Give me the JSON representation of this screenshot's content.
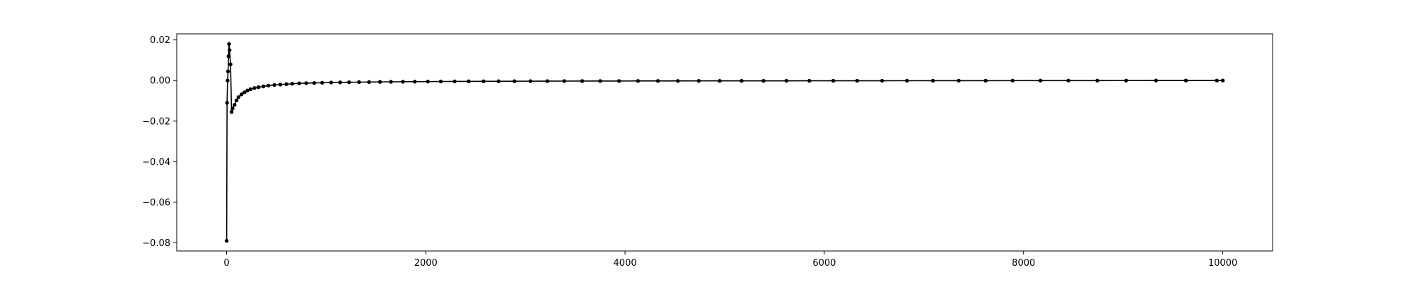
{
  "chart_data": {
    "type": "line",
    "title": "",
    "xlabel": "",
    "ylabel": "",
    "xlim": [
      -500,
      10500
    ],
    "ylim": [
      -0.084,
      0.023
    ],
    "x_ticks": [
      0,
      2000,
      4000,
      6000,
      8000,
      10000
    ],
    "x_tick_labels": [
      "0",
      "2000",
      "4000",
      "6000",
      "8000",
      "10000"
    ],
    "y_ticks": [
      0.02,
      0.0,
      -0.02,
      -0.04,
      -0.06,
      -0.08
    ],
    "y_tick_labels": [
      "0.02",
      "0.00",
      "−0.02",
      "−0.04",
      "−0.06",
      "−0.08"
    ],
    "grid": false,
    "line_color": "#000000",
    "marker": "circle",
    "series": [
      {
        "x": [
          1,
          5,
          10,
          15,
          20,
          25,
          30,
          40,
          50,
          60,
          80,
          100,
          120,
          150,
          180,
          210,
          240,
          280,
          320,
          370,
          420,
          480,
          540,
          600,
          660,
          730,
          800,
          880,
          960,
          1050,
          1140,
          1230,
          1330,
          1430,
          1540,
          1650,
          1770,
          1890,
          2020,
          2150,
          2290,
          2430,
          2580,
          2730,
          2890,
          3050,
          3220,
          3390,
          3570,
          3750,
          3940,
          4130,
          4330,
          4530,
          4740,
          4950,
          5170,
          5390,
          5620,
          5850,
          6090,
          6330,
          6580,
          6830,
          7090,
          7350,
          7620,
          7890,
          8170,
          8450,
          8740,
          9030,
          9330,
          9630,
          9940,
          10000
        ],
        "y": [
          -0.079,
          -0.011,
          0.0,
          0.0045,
          0.012,
          0.018,
          0.015,
          0.008,
          -0.0155,
          -0.0138,
          -0.012,
          -0.0098,
          -0.0082,
          -0.0068,
          -0.0058,
          -0.0049,
          -0.0043,
          -0.0037,
          -0.0033,
          -0.0029,
          -0.0025,
          -0.0022,
          -0.002,
          -0.0018,
          -0.0016,
          -0.0014,
          -0.0013,
          -0.0012,
          -0.0011,
          -0.001,
          -0.0009,
          -0.00085,
          -0.0008,
          -0.00075,
          -0.0007,
          -0.00065,
          -0.0006,
          -0.00055,
          -0.0005,
          -0.00047,
          -0.00044,
          -0.00041,
          -0.00038,
          -0.00036,
          -0.00034,
          -0.00032,
          -0.0003,
          -0.00028,
          -0.00026,
          -0.00025,
          -0.00024,
          -0.00022,
          -0.00021,
          -0.0002,
          -0.00019,
          -0.00018,
          -0.00017,
          -0.00016,
          -0.00015,
          -0.00014,
          -0.00013,
          -0.00012,
          -0.00011,
          -0.0001,
          -9e-05,
          -8e-05,
          -7e-05,
          -6e-05,
          -5e-05,
          -4e-05,
          -3e-05,
          -2e-05,
          -1e-05,
          0.0,
          0.0,
          0.0
        ]
      }
    ]
  }
}
